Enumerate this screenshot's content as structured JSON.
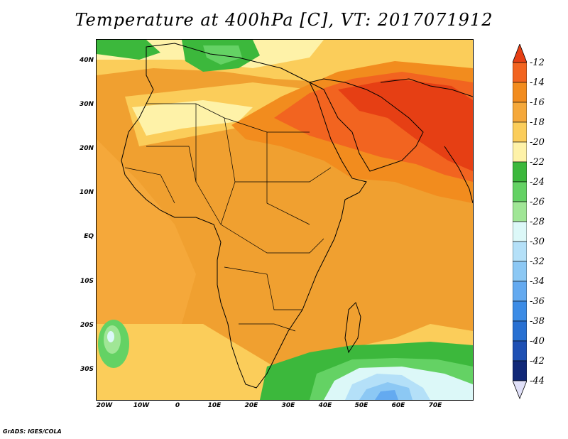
{
  "title": "Temperature at 400hPa [C], VT: 2017071912",
  "credit": "GrADS: IGES/COLA",
  "map": {
    "region": "Africa, Arabia and western South Asia",
    "projection": "lat-lon",
    "lon_range": [
      -22,
      80
    ],
    "lat_range": [
      -37,
      45
    ],
    "field": "Temperature",
    "level": "400hPa",
    "units": "C",
    "valid_time": "2017071912",
    "lat_labels": [
      "40N",
      "30N",
      "20N",
      "10N",
      "EQ",
      "10S",
      "20S",
      "30S"
    ],
    "lat_values": [
      40,
      30,
      20,
      10,
      0,
      -10,
      -20,
      -30
    ],
    "lon_labels": [
      "20W",
      "10W",
      "0",
      "10E",
      "20E",
      "30E",
      "40E",
      "50E",
      "60E",
      "70E"
    ],
    "lon_values": [
      -20,
      -10,
      0,
      10,
      20,
      30,
      40,
      50,
      60,
      70
    ],
    "features": [
      {
        "name": "warm-core-arabia-iran",
        "range_c": "-14 to -12",
        "color": "#f25a1e"
      },
      {
        "name": "cool-band-mediterranean",
        "range_c": "-24 to -22",
        "color": "#44c44c"
      },
      {
        "name": "cold-pool-southern-ocean",
        "range_c": "-34 to -28",
        "color": "#a0d8f8"
      },
      {
        "name": "cold-spot-south-atlantic",
        "range_c": "-28 to -24",
        "color": "#7cdc74"
      }
    ]
  },
  "colorbar": {
    "labels": [
      "-12",
      "-14",
      "-16",
      "-18",
      "-20",
      "-22",
      "-24",
      "-26",
      "-28",
      "-30",
      "-32",
      "-34",
      "-36",
      "-38",
      "-40",
      "-42",
      "-44"
    ],
    "colors": [
      "#e63f14",
      "#f26420",
      "#f28c1e",
      "#f5a83a",
      "#fbcd5a",
      "#fef2a8",
      "#3cb83c",
      "#64d264",
      "#a0e696",
      "#dcf8f8",
      "#b4e0f8",
      "#8cc8f4",
      "#64aaf0",
      "#3c8ce6",
      "#2870d2",
      "#1e50b4",
      "#102878",
      "#e0e0f8"
    ]
  }
}
